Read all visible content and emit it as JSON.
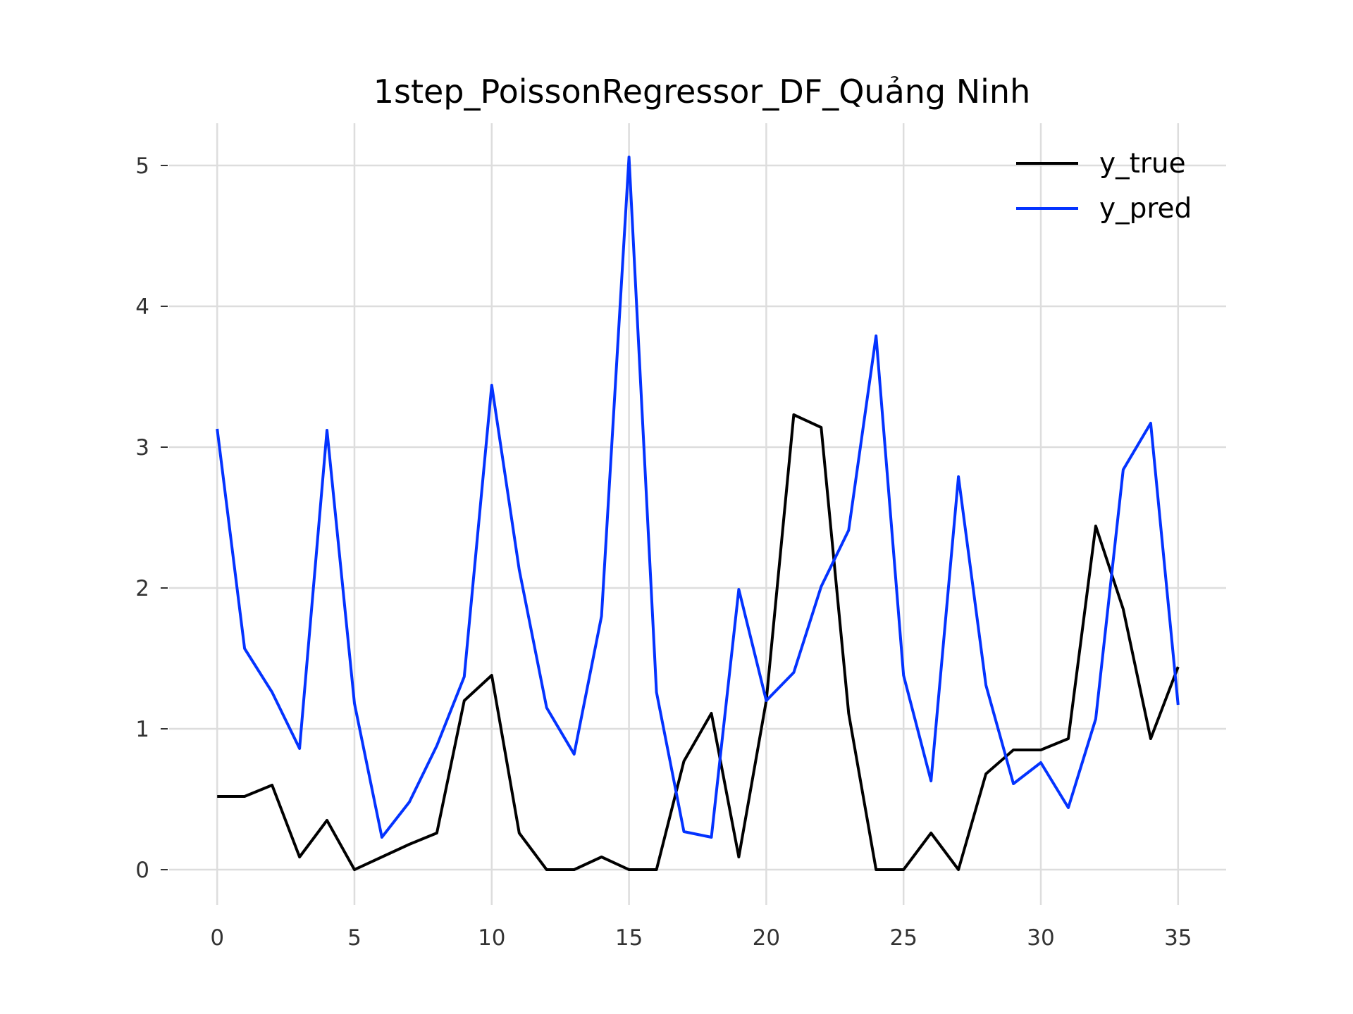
{
  "chart_data": {
    "type": "line",
    "title": "1step_PoissonRegressor_DF_Quảng Ninh",
    "xlabel": "",
    "ylabel": "",
    "xlim": [
      -1.75,
      36.75
    ],
    "ylim": [
      -0.25,
      5.3
    ],
    "xticks": [
      0,
      5,
      10,
      15,
      20,
      25,
      30,
      35
    ],
    "yticks": [
      0,
      1,
      2,
      3,
      4,
      5
    ],
    "xtick_labels": [
      "0",
      "5",
      "10",
      "15",
      "20",
      "25",
      "30",
      "35"
    ],
    "ytick_labels": [
      "0",
      "1",
      "2",
      "3",
      "4",
      "5"
    ],
    "grid": true,
    "legend_position": "top-right",
    "x": [
      0,
      1,
      2,
      3,
      4,
      5,
      6,
      7,
      8,
      9,
      10,
      11,
      12,
      13,
      14,
      15,
      16,
      17,
      18,
      19,
      20,
      21,
      22,
      23,
      24,
      25,
      26,
      27,
      28,
      29,
      30,
      31,
      32,
      33,
      34,
      35
    ],
    "series": [
      {
        "name": "y_true",
        "color": "#000000",
        "values": [
          0.52,
          0.52,
          0.6,
          0.09,
          0.35,
          0.0,
          0.09,
          0.18,
          0.26,
          1.2,
          1.38,
          0.26,
          0.0,
          0.0,
          0.09,
          0.0,
          0.0,
          0.77,
          1.11,
          0.09,
          1.2,
          3.23,
          3.14,
          1.11,
          0.0,
          0.0,
          0.26,
          0.0,
          0.68,
          0.85,
          0.85,
          0.93,
          2.44,
          1.85,
          0.93,
          1.44
        ]
      },
      {
        "name": "y_pred",
        "color": "#0433ff",
        "values": [
          3.13,
          1.57,
          1.26,
          0.86,
          3.12,
          1.18,
          0.23,
          0.48,
          0.88,
          1.37,
          3.44,
          2.13,
          1.15,
          0.82,
          1.8,
          5.06,
          1.26,
          0.27,
          0.23,
          1.99,
          1.2,
          1.4,
          2.01,
          2.41,
          3.79,
          1.38,
          0.63,
          2.79,
          1.31,
          0.61,
          0.76,
          0.44,
          1.07,
          2.84,
          3.17,
          1.17
        ]
      }
    ]
  }
}
